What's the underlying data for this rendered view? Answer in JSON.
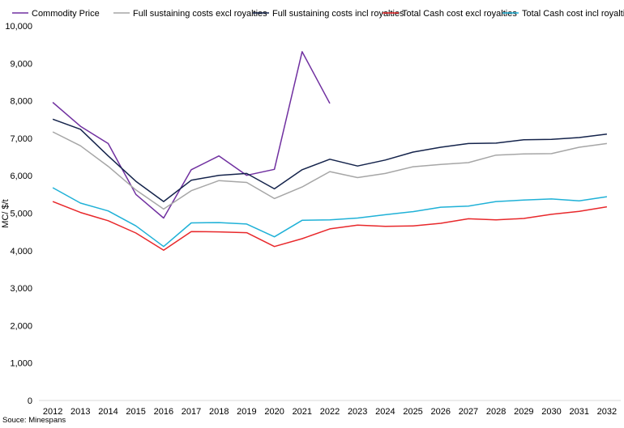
{
  "chart_data": {
    "type": "line",
    "title": "",
    "xlabel": "",
    "ylabel": "MC/ $/t",
    "ylim": [
      0,
      10000
    ],
    "yticks": [
      0,
      1000,
      2000,
      3000,
      4000,
      5000,
      6000,
      7000,
      8000,
      9000,
      10000
    ],
    "ytick_labels": [
      "0",
      "1,000",
      "2,000",
      "3,000",
      "4,000",
      "5,000",
      "6,000",
      "7,000",
      "8,000",
      "9,000",
      "10,000"
    ],
    "legend_position": "top",
    "grid": false,
    "categories": [
      "2012",
      "2013",
      "2014",
      "2015",
      "2016",
      "2017",
      "2018",
      "2019",
      "2020",
      "2021",
      "2022",
      "2023",
      "2024",
      "2025",
      "2026",
      "2027",
      "2028",
      "2029",
      "2030",
      "2031",
      "2032"
    ],
    "series": [
      {
        "name": "Commodity Price",
        "color": "#7030a0",
        "values": [
          7960,
          7320,
          6860,
          5500,
          4870,
          6160,
          6530,
          6010,
          6170,
          9310,
          7930,
          null,
          null,
          null,
          null,
          null,
          null,
          null,
          null,
          null,
          null
        ]
      },
      {
        "name": "Full sustaining costs excl royalties",
        "color": "#a6a6a6",
        "values": [
          7170,
          6800,
          6250,
          5620,
          5110,
          5600,
          5870,
          5820,
          5390,
          5700,
          6110,
          5950,
          6060,
          6240,
          6300,
          6350,
          6550,
          6580,
          6590,
          6760,
          6860
        ]
      },
      {
        "name": "Full sustaining costs incl royalties",
        "color": "#14234b",
        "values": [
          7510,
          7240,
          6530,
          5850,
          5310,
          5880,
          6010,
          6060,
          5650,
          6160,
          6440,
          6260,
          6420,
          6630,
          6760,
          6860,
          6870,
          6960,
          6970,
          7020,
          7110
        ]
      },
      {
        "name": "Total Cash cost excl royalties",
        "color": "#e8282b",
        "values": [
          5310,
          5020,
          4800,
          4470,
          4010,
          4510,
          4500,
          4480,
          4110,
          4320,
          4580,
          4680,
          4650,
          4660,
          4730,
          4850,
          4820,
          4860,
          4970,
          5050,
          5170
        ]
      },
      {
        "name": "Total Cash cost incl royalties",
        "color": "#1fb1d7",
        "values": [
          5680,
          5270,
          5060,
          4660,
          4110,
          4740,
          4750,
          4710,
          4370,
          4810,
          4820,
          4870,
          4960,
          5040,
          5160,
          5190,
          5310,
          5350,
          5380,
          5330,
          5440
        ]
      }
    ]
  },
  "source_note": "Souce: Minespans"
}
